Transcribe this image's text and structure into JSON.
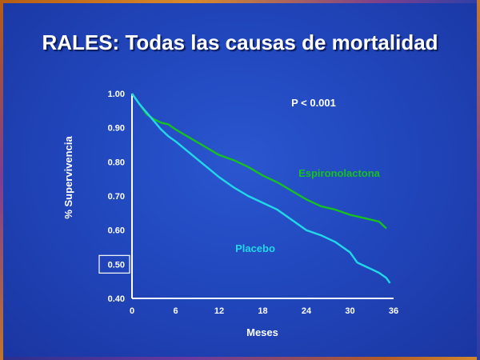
{
  "slide": {
    "title": "RALES: Todas las causas de mortalidad"
  },
  "chart_data": {
    "type": "line",
    "title": "RALES: Todas las causas de mortalidad",
    "xlabel": "Meses",
    "ylabel": "% Supervivencia",
    "xlim": [
      0,
      36
    ],
    "ylim": [
      0.4,
      1.0
    ],
    "x_ticks": [
      "0",
      "6",
      "12",
      "18",
      "24",
      "30",
      "36"
    ],
    "y_ticks": [
      "1.00",
      "0.90",
      "0.80",
      "0.70",
      "0.60",
      "0.50",
      "0.40"
    ],
    "highlighted_y_tick": "0.50",
    "grid": false,
    "annotation": "P < 0.001",
    "series": [
      {
        "name": "Espironolactona",
        "color": "#17c11f",
        "x": [
          0,
          1,
          2,
          3,
          4,
          5,
          6,
          8,
          10,
          12,
          14,
          16,
          18,
          20,
          22,
          24,
          26,
          28,
          30,
          32,
          34,
          35
        ],
        "y": [
          1.0,
          0.97,
          0.94,
          0.925,
          0.915,
          0.91,
          0.895,
          0.87,
          0.845,
          0.82,
          0.805,
          0.785,
          0.76,
          0.74,
          0.715,
          0.69,
          0.67,
          0.66,
          0.645,
          0.635,
          0.625,
          0.605
        ]
      },
      {
        "name": "Placebo",
        "color": "#22d8e8",
        "x": [
          0,
          1,
          2,
          3,
          4,
          5,
          6,
          8,
          10,
          12,
          14,
          16,
          18,
          20,
          22,
          24,
          26,
          28,
          30,
          31,
          32,
          33,
          34,
          35,
          35.5
        ],
        "y": [
          1.0,
          0.97,
          0.945,
          0.92,
          0.895,
          0.875,
          0.86,
          0.825,
          0.79,
          0.755,
          0.725,
          0.7,
          0.68,
          0.66,
          0.63,
          0.6,
          0.585,
          0.565,
          0.535,
          0.505,
          0.495,
          0.485,
          0.475,
          0.46,
          0.445
        ]
      }
    ]
  }
}
